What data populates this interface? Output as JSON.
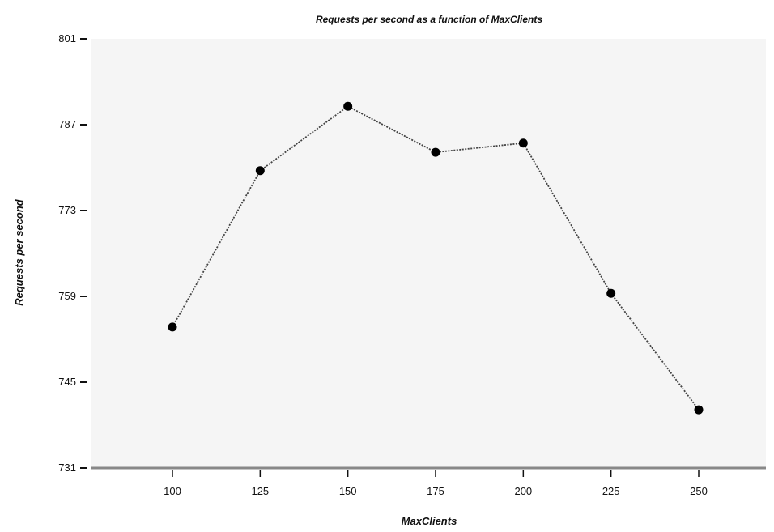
{
  "chart_data": {
    "type": "line",
    "title": "Requests per second as a function of MaxClients",
    "xlabel": "MaxClients",
    "ylabel": "Requests per second",
    "x": [
      100,
      125,
      150,
      175,
      200,
      225,
      250
    ],
    "series": [
      {
        "name": "",
        "values": [
          754,
          779.5,
          790,
          782.5,
          784,
          759.5,
          740.5
        ]
      }
    ],
    "x_ticks": [
      "100",
      "125",
      "150",
      "175",
      "200",
      "225",
      "250"
    ],
    "y_ticks": [
      "731",
      "745",
      "759",
      "773",
      "787",
      "801"
    ],
    "xlim": [
      76,
      276
    ],
    "ylim": [
      731,
      801
    ],
    "grid": false,
    "legend": "none"
  },
  "colors": {
    "plot_background": "#f5f5f5",
    "line": "#444444",
    "marker": "#000000",
    "axis": "#888888",
    "text": "#111111"
  }
}
